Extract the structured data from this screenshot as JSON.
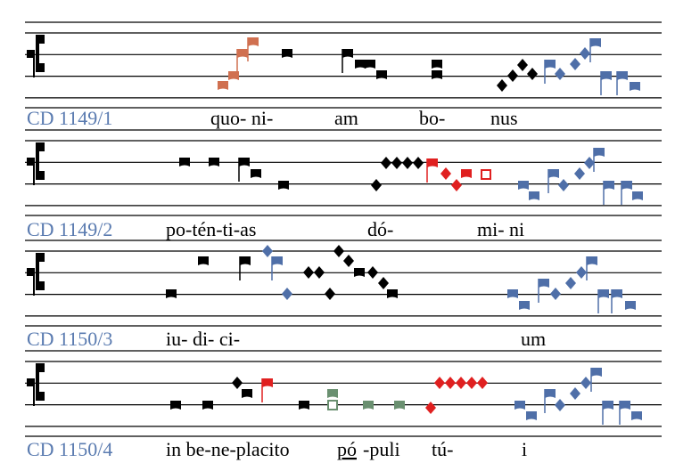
{
  "rows": [
    {
      "label": "CD 1149/1",
      "syllables": [
        "quo- ni-",
        "am",
        "bo-",
        "nus"
      ]
    },
    {
      "label": "CD 1149/2",
      "syllables": [
        "po-tén-ti-as",
        "dó-",
        "mi- ni"
      ]
    },
    {
      "label": "CD 1150/3",
      "syllables": [
        "iu- di- ci-",
        "um"
      ]
    },
    {
      "label": "CD 1150/4",
      "syllables": [
        "in be-ne-placito",
        "pó",
        "-puli",
        "tú-",
        "i"
      ]
    }
  ]
}
